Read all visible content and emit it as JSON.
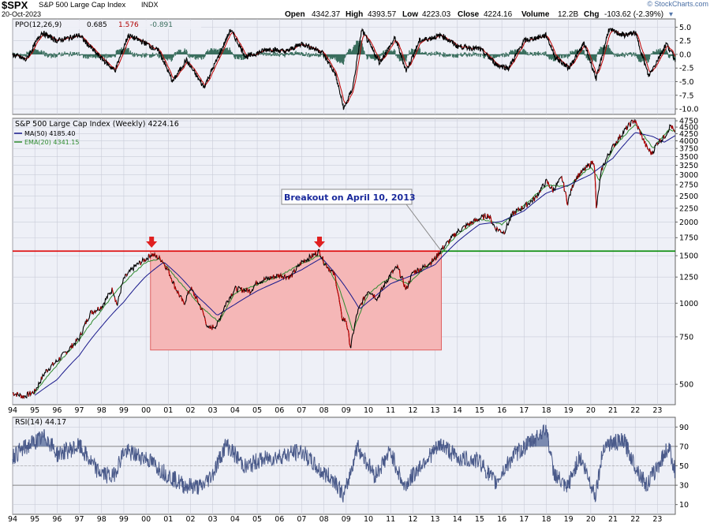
{
  "header": {
    "ticker": "$SPX",
    "name": "S&P 500 Large Cap Index",
    "exchange": "INDX",
    "date": "20-Oct-2023",
    "open_label": "Open",
    "open": "4342.37",
    "high_label": "High",
    "high": "4393.57",
    "low_label": "Low",
    "low": "4223.03",
    "close_label": "Close",
    "close": "4224.16",
    "volume_label": "Volume",
    "volume": "12.2B",
    "chg_label": "Chg",
    "chg": "-103.62 (-2.39%)",
    "chg_marker": "▾",
    "brand": "© StockCharts.com"
  },
  "colors": {
    "price": "#000000",
    "down": "#cc0000",
    "ma50": "#1a1a8c",
    "ema20": "#2e8b2e",
    "resistance": "#dd0000",
    "support": "#008800",
    "box_fill": "#f5b7b7",
    "box_stroke": "#e06060",
    "arrow": "#e02020",
    "rsi": "#4a5a8a",
    "ppo_line": "#000000",
    "ppo_signal": "#c00000",
    "ppo_hist": "#3a6e5e",
    "callout_text": "#1a2a9c"
  },
  "ppo": {
    "label": "PPO(12,26,9)",
    "value1": "0.685",
    "value2": "1.576",
    "value3": "-0.891",
    "ticks": [
      "5.0",
      "2.5",
      "0.0",
      "-2.5",
      "-5.0",
      "-7.5",
      "-10.0"
    ]
  },
  "price_panel": {
    "label": "S&P 500 Large Cap Index (Weekly) 4224.16",
    "ma_label": "MA(50) 4185.40",
    "ema_label": "EMA(20) 4341.15",
    "ticks": [
      "4750",
      "4500",
      "4250",
      "4000",
      "3750",
      "3500",
      "3250",
      "3000",
      "2750",
      "2500",
      "2250",
      "2000",
      "1750",
      "1500",
      "1250",
      "1000",
      "750",
      "500"
    ],
    "annotation": "Breakout on April 10, 2013"
  },
  "rsi": {
    "label": "RSI(14) 44.17",
    "ticks": [
      "90",
      "70",
      "50",
      "30",
      "10"
    ]
  },
  "x_axis": {
    "labels": [
      "94",
      "95",
      "96",
      "97",
      "98",
      "99",
      "00",
      "01",
      "02",
      "03",
      "04",
      "05",
      "06",
      "07",
      "08",
      "09",
      "10",
      "11",
      "12",
      "13",
      "14",
      "15",
      "16",
      "17",
      "18",
      "19",
      "20",
      "21",
      "22",
      "23"
    ]
  },
  "chart_data": {
    "type": "line",
    "title": "S&P 500 Large Cap Index (Weekly)",
    "scale": "log",
    "x_range": [
      1994.0,
      2023.8
    ],
    "ylim": [
      420,
      4850
    ],
    "series": [
      {
        "name": "S&P 500 Large Cap Index (Weekly)",
        "points": [
          [
            1994.0,
            465
          ],
          [
            1994.5,
            450
          ],
          [
            1995.0,
            470
          ],
          [
            1995.5,
            560
          ],
          [
            1996.0,
            610
          ],
          [
            1996.5,
            670
          ],
          [
            1997.0,
            740
          ],
          [
            1997.5,
            920
          ],
          [
            1998.0,
            970
          ],
          [
            1998.5,
            1130
          ],
          [
            1998.7,
            980
          ],
          [
            1999.0,
            1230
          ],
          [
            1999.5,
            1370
          ],
          [
            2000.0,
            1460
          ],
          [
            2000.25,
            1520
          ],
          [
            2000.7,
            1450
          ],
          [
            2001.0,
            1320
          ],
          [
            2001.3,
            1150
          ],
          [
            2001.7,
            990
          ],
          [
            2002.0,
            1140
          ],
          [
            2002.5,
            950
          ],
          [
            2002.8,
            800
          ],
          [
            2003.2,
            830
          ],
          [
            2003.6,
            1000
          ],
          [
            2004.0,
            1130
          ],
          [
            2004.7,
            1110
          ],
          [
            2005.0,
            1200
          ],
          [
            2006.0,
            1270
          ],
          [
            2006.5,
            1250
          ],
          [
            2007.0,
            1420
          ],
          [
            2007.5,
            1500
          ],
          [
            2007.8,
            1560
          ],
          [
            2008.0,
            1420
          ],
          [
            2008.5,
            1260
          ],
          [
            2008.8,
            880
          ],
          [
            2009.0,
            860
          ],
          [
            2009.2,
            680
          ],
          [
            2009.5,
            920
          ],
          [
            2010.0,
            1120
          ],
          [
            2010.4,
            1040
          ],
          [
            2011.0,
            1280
          ],
          [
            2011.3,
            1360
          ],
          [
            2011.7,
            1120
          ],
          [
            2012.0,
            1300
          ],
          [
            2012.5,
            1360
          ],
          [
            2013.0,
            1460
          ],
          [
            2013.28,
            1580
          ],
          [
            2013.6,
            1690
          ],
          [
            2014.0,
            1840
          ],
          [
            2014.5,
            1960
          ],
          [
            2015.0,
            2060
          ],
          [
            2015.4,
            2120
          ],
          [
            2015.7,
            1900
          ],
          [
            2016.1,
            1830
          ],
          [
            2016.5,
            2150
          ],
          [
            2017.0,
            2280
          ],
          [
            2017.5,
            2450
          ],
          [
            2018.0,
            2830
          ],
          [
            2018.3,
            2620
          ],
          [
            2018.7,
            2920
          ],
          [
            2018.95,
            2350
          ],
          [
            2019.3,
            2900
          ],
          [
            2019.9,
            3230
          ],
          [
            2020.15,
            3380
          ],
          [
            2020.25,
            2230
          ],
          [
            2020.5,
            3150
          ],
          [
            2020.9,
            3700
          ],
          [
            2021.5,
            4350
          ],
          [
            2021.95,
            4790
          ],
          [
            2022.5,
            3800
          ],
          [
            2022.75,
            3580
          ],
          [
            2023.0,
            3950
          ],
          [
            2023.3,
            4120
          ],
          [
            2023.6,
            4580
          ],
          [
            2023.8,
            4224
          ]
        ]
      },
      {
        "name": "MA(50) 4185.40",
        "points": [
          [
            1995.0,
            455
          ],
          [
            1996.0,
            520
          ],
          [
            1997.0,
            640
          ],
          [
            1998.0,
            820
          ],
          [
            1999.0,
            1010
          ],
          [
            2000.0,
            1260
          ],
          [
            2000.8,
            1420
          ],
          [
            2001.5,
            1260
          ],
          [
            2002.3,
            1060
          ],
          [
            2003.2,
            900
          ],
          [
            2004.0,
            990
          ],
          [
            2005.0,
            1110
          ],
          [
            2006.0,
            1210
          ],
          [
            2007.0,
            1330
          ],
          [
            2007.9,
            1470
          ],
          [
            2008.8,
            1200
          ],
          [
            2009.6,
            950
          ],
          [
            2010.3,
            1060
          ],
          [
            2011.0,
            1180
          ],
          [
            2012.0,
            1270
          ],
          [
            2013.0,
            1390
          ],
          [
            2014.0,
            1690
          ],
          [
            2015.0,
            1960
          ],
          [
            2016.0,
            2010
          ],
          [
            2017.0,
            2200
          ],
          [
            2018.0,
            2560
          ],
          [
            2019.0,
            2740
          ],
          [
            2020.0,
            3000
          ],
          [
            2021.0,
            3450
          ],
          [
            2022.0,
            4300
          ],
          [
            2022.8,
            4150
          ],
          [
            2023.3,
            3950
          ],
          [
            2023.8,
            4185
          ]
        ]
      },
      {
        "name": "EMA(20) 4341.15",
        "points": [
          [
            1995.0,
            465
          ],
          [
            1996.0,
            590
          ],
          [
            1997.0,
            730
          ],
          [
            1998.0,
            940
          ],
          [
            1999.0,
            1190
          ],
          [
            2000.0,
            1420
          ],
          [
            2000.6,
            1460
          ],
          [
            2001.5,
            1200
          ],
          [
            2002.5,
            960
          ],
          [
            2003.3,
            850
          ],
          [
            2004.0,
            1090
          ],
          [
            2005.0,
            1170
          ],
          [
            2006.0,
            1260
          ],
          [
            2007.0,
            1400
          ],
          [
            2007.8,
            1500
          ],
          [
            2008.6,
            1180
          ],
          [
            2009.3,
            780
          ],
          [
            2010.0,
            1080
          ],
          [
            2011.0,
            1250
          ],
          [
            2011.8,
            1180
          ],
          [
            2012.5,
            1340
          ],
          [
            2013.3,
            1540
          ],
          [
            2014.0,
            1800
          ],
          [
            2015.0,
            2050
          ],
          [
            2016.0,
            1960
          ],
          [
            2017.0,
            2300
          ],
          [
            2018.0,
            2730
          ],
          [
            2019.0,
            2720
          ],
          [
            2020.0,
            3200
          ],
          [
            2020.4,
            2850
          ],
          [
            2021.0,
            3750
          ],
          [
            2022.0,
            4600
          ],
          [
            2022.8,
            3750
          ],
          [
            2023.5,
            4400
          ],
          [
            2023.8,
            4341
          ]
        ]
      }
    ],
    "resistance_level": 1560,
    "resistance_range": [
      1994.0,
      2013.28
    ],
    "support_range": [
      2013.28,
      2023.8
    ],
    "range_box": {
      "x": [
        2000.2,
        2013.28
      ],
      "y": [
        670,
        1560
      ]
    },
    "markers": [
      2000.25,
      2007.8
    ],
    "breakout": [
      2013.28,
      1560
    ],
    "rsi_series": {
      "name": "RSI(14)",
      "points": [
        [
          1994.0,
          60
        ],
        [
          1995.0,
          75
        ],
        [
          1995.5,
          80
        ],
        [
          1996.0,
          62
        ],
        [
          1997.0,
          70
        ],
        [
          1997.8,
          45
        ],
        [
          1998.5,
          38
        ],
        [
          1999.0,
          65
        ],
        [
          2000.0,
          58
        ],
        [
          2001.0,
          40
        ],
        [
          2001.7,
          30
        ],
        [
          2002.5,
          28
        ],
        [
          2003.0,
          42
        ],
        [
          2003.6,
          72
        ],
        [
          2004.5,
          48
        ],
        [
          2005.0,
          55
        ],
        [
          2006.0,
          60
        ],
        [
          2007.0,
          65
        ],
        [
          2007.8,
          45
        ],
        [
          2008.5,
          35
        ],
        [
          2008.9,
          18
        ],
        [
          2009.5,
          70
        ],
        [
          2010.3,
          40
        ],
        [
          2011.0,
          65
        ],
        [
          2011.6,
          28
        ],
        [
          2012.5,
          55
        ],
        [
          2013.3,
          72
        ],
        [
          2014.0,
          58
        ],
        [
          2015.0,
          55
        ],
        [
          2015.7,
          32
        ],
        [
          2016.5,
          60
        ],
        [
          2017.5,
          78
        ],
        [
          2018.0,
          90
        ],
        [
          2018.3,
          45
        ],
        [
          2018.9,
          25
        ],
        [
          2019.5,
          60
        ],
        [
          2020.2,
          20
        ],
        [
          2020.6,
          72
        ],
        [
          2021.5,
          75
        ],
        [
          2022.0,
          50
        ],
        [
          2022.5,
          30
        ],
        [
          2022.9,
          45
        ],
        [
          2023.5,
          70
        ],
        [
          2023.8,
          44
        ]
      ]
    },
    "rsi_ylim": [
      0,
      100
    ],
    "ppo_series": {
      "name": "PPO(12,26,9)",
      "points": [
        [
          1994.0,
          0
        ],
        [
          1994.6,
          -1.0
        ],
        [
          1995.3,
          4
        ],
        [
          1996.0,
          2.5
        ],
        [
          1997.0,
          3.5
        ],
        [
          1997.8,
          0
        ],
        [
          1998.6,
          -3.0
        ],
        [
          1999.2,
          3.5
        ],
        [
          2000.0,
          2.0
        ],
        [
          2000.6,
          0.5
        ],
        [
          2001.2,
          -5.0
        ],
        [
          2001.8,
          -1.0
        ],
        [
          2002.6,
          -6.0
        ],
        [
          2003.3,
          0
        ],
        [
          2003.8,
          4.5
        ],
        [
          2004.5,
          -0.5
        ],
        [
          2005.5,
          1.0
        ],
        [
          2006.3,
          0.5
        ],
        [
          2007.0,
          2.0
        ],
        [
          2007.9,
          0.5
        ],
        [
          2008.5,
          -3.5
        ],
        [
          2008.9,
          -10.0
        ],
        [
          2009.3,
          -6.0
        ],
        [
          2009.7,
          4.5
        ],
        [
          2010.5,
          -1.5
        ],
        [
          2011.2,
          3.0
        ],
        [
          2011.7,
          -3.0
        ],
        [
          2012.3,
          2.5
        ],
        [
          2013.3,
          3.5
        ],
        [
          2014.0,
          1.5
        ],
        [
          2015.0,
          1.0
        ],
        [
          2015.8,
          -2.0
        ],
        [
          2016.3,
          -2.5
        ],
        [
          2017.0,
          2.5
        ],
        [
          2018.0,
          3.5
        ],
        [
          2018.4,
          -0.5
        ],
        [
          2019.0,
          -2.5
        ],
        [
          2019.7,
          2.0
        ],
        [
          2020.25,
          -4.5
        ],
        [
          2020.8,
          4.5
        ],
        [
          2021.5,
          3.5
        ],
        [
          2022.0,
          4.0
        ],
        [
          2022.6,
          -4.0
        ],
        [
          2023.4,
          2.0
        ],
        [
          2023.8,
          -1.0
        ]
      ]
    },
    "ppo_ylim": [
      -11,
      6.5
    ]
  }
}
